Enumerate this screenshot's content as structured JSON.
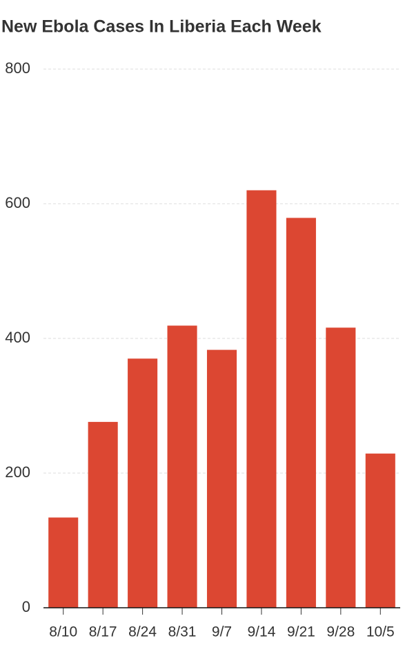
{
  "chart_data": {
    "type": "bar",
    "title": "New Ebola Cases In Liberia Each Week",
    "categories": [
      "8/10",
      "8/17",
      "8/24",
      "8/31",
      "9/7",
      "9/14",
      "9/21",
      "9/28",
      "10/5"
    ],
    "values": [
      134,
      276,
      370,
      419,
      383,
      620,
      579,
      416,
      229
    ],
    "color": "#dc4732",
    "ylim": [
      0,
      800
    ],
    "yticks": [
      0,
      200,
      400,
      600,
      800
    ],
    "grid": true
  }
}
